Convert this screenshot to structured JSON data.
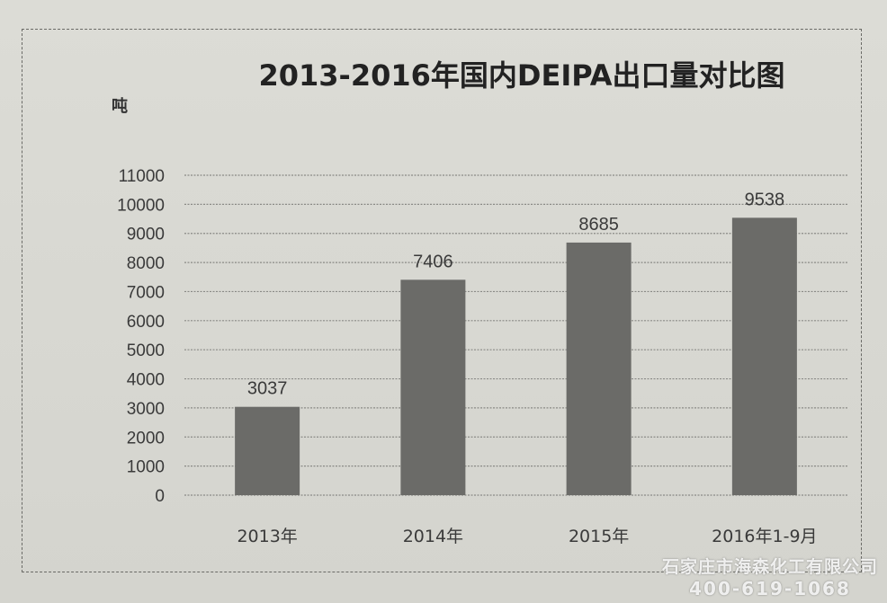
{
  "chart_data": {
    "type": "bar",
    "title": "2013-2016年国内DEIPA出口量对比图",
    "ylabel": "吨",
    "categories": [
      "2013年",
      "2014年",
      "2015年",
      "2016年1-9月"
    ],
    "values": [
      3037,
      7406,
      8685,
      9538
    ],
    "data_labels": [
      "3037",
      "7406",
      "8685",
      "9538"
    ],
    "ylim": [
      0,
      11000
    ],
    "yticks": [
      0,
      1000,
      2000,
      3000,
      4000,
      5000,
      6000,
      7000,
      8000,
      9000,
      10000,
      11000
    ],
    "grid": true,
    "bar_color": "#6b6b68"
  },
  "watermark": {
    "company": "石家庄市海森化工有限公司",
    "phone": "400-619-1068"
  }
}
